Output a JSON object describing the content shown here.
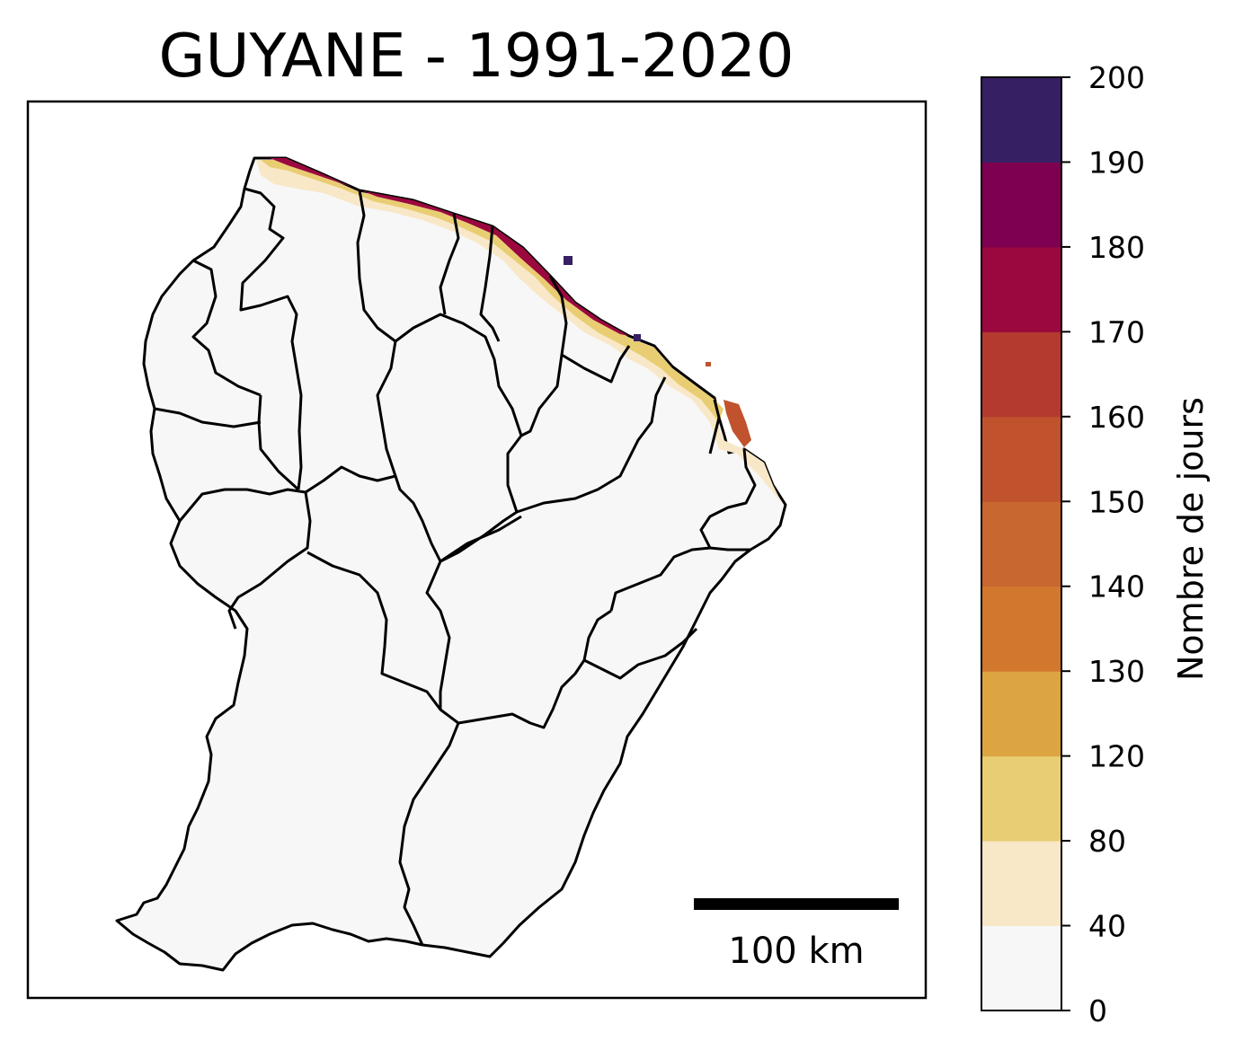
{
  "title": "GUYANE - 1991-2020",
  "scale_bar": {
    "label": "100 km"
  },
  "colorbar": {
    "label": "Nombre de jours",
    "ticks": [
      "0",
      "40",
      "80",
      "120",
      "130",
      "140",
      "150",
      "160",
      "170",
      "180",
      "190",
      "200"
    ],
    "bands": [
      {
        "from": "0",
        "to": "40",
        "color": "#f7f7f7"
      },
      {
        "from": "40",
        "to": "80",
        "color": "#f8e8c8"
      },
      {
        "from": "80",
        "to": "120",
        "color": "#e9cd73"
      },
      {
        "from": "120",
        "to": "130",
        "color": "#dca542"
      },
      {
        "from": "130",
        "to": "140",
        "color": "#d2782e"
      },
      {
        "from": "140",
        "to": "150",
        "color": "#c8672f"
      },
      {
        "from": "150",
        "to": "160",
        "color": "#c0522e"
      },
      {
        "from": "160",
        "to": "170",
        "color": "#b43a2f"
      },
      {
        "from": "170",
        "to": "180",
        "color": "#9b0840"
      },
      {
        "from": "180",
        "to": "190",
        "color": "#7e0050"
      },
      {
        "from": "190",
        "to": "200",
        "color": "#371f64"
      }
    ]
  }
}
